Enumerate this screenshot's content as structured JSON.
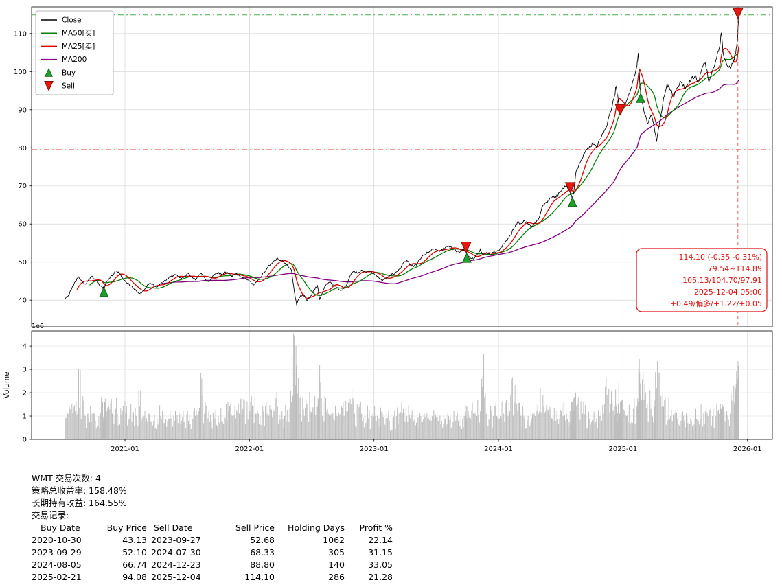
{
  "chart_data": {
    "type": "line",
    "title": "",
    "symbol": "WMT",
    "xlim": [
      2020.25,
      2026.2
    ],
    "price_ylim": [
      33,
      117
    ],
    "volume_ylim": [
      0,
      4.65
    ],
    "x_ticks": [
      {
        "x": 2021,
        "label": "2021-01"
      },
      {
        "x": 2022,
        "label": "2022-01"
      },
      {
        "x": 2023,
        "label": "2023-01"
      },
      {
        "x": 2024,
        "label": "2024-01"
      },
      {
        "x": 2025,
        "label": "2025-01"
      },
      {
        "x": 2026,
        "label": "2026-01"
      }
    ],
    "price_ticks": [
      40,
      50,
      60,
      70,
      80,
      90,
      100,
      110
    ],
    "volume_ticks": [
      0,
      1,
      2,
      3,
      4
    ],
    "volume_scale_label": "1e6",
    "volume_ylabel": "Volume",
    "series_labels": {
      "close": "Close",
      "ma50": "MA50[买]",
      "ma25": "MA25[卖]",
      "ma200": "MA200"
    },
    "ma_windows_days": {
      "ma25": 25,
      "ma50": 50,
      "ma200": 200
    },
    "thresholds": {
      "upper": 114.89,
      "lower": 79.54
    },
    "current_vline_x": 2025.923,
    "annotation_lines": [
      "114.10 (-0.35 -0.31%)",
      "79.54~114.89",
      "105.13/104.70/97.91",
      "2025-12-04 05:00",
      "+0.49/偏多/+1.22/+0.05"
    ],
    "markers": {
      "buys": [
        {
          "date": "2020-10-30",
          "x": 2020.831,
          "price": 43.13
        },
        {
          "date": "2023-09-29",
          "x": 2023.745,
          "price": 52.1
        },
        {
          "date": "2024-08-05",
          "x": 2024.594,
          "price": 66.74
        },
        {
          "date": "2025-02-21",
          "x": 2025.142,
          "price": 94.08
        }
      ],
      "sells": [
        {
          "date": "2023-09-27",
          "x": 2023.74,
          "price": 52.68
        },
        {
          "date": "2024-07-30",
          "x": 2024.577,
          "price": 68.33
        },
        {
          "date": "2024-12-23",
          "x": 2024.978,
          "price": 88.8
        },
        {
          "date": "2025-12-04",
          "x": 2025.923,
          "price": 114.1
        }
      ]
    },
    "points_format": [
      "year_decimal",
      "close",
      "volume_millions"
    ],
    "points": [
      [
        2020.52,
        40.4,
        0.9
      ],
      [
        2020.547,
        41.3,
        1.1
      ],
      [
        2020.574,
        43.2,
        1.5
      ],
      [
        2020.601,
        44.9,
        1.2
      ],
      [
        2020.628,
        46.1,
        3.0
      ],
      [
        2020.655,
        44.9,
        1.4
      ],
      [
        2020.682,
        44.2,
        1.0
      ],
      [
        2020.709,
        45.4,
        0.9
      ],
      [
        2020.736,
        46.3,
        1.1
      ],
      [
        2020.763,
        45.2,
        0.8
      ],
      [
        2020.79,
        44.2,
        1.0
      ],
      [
        2020.817,
        43.4,
        1.3
      ],
      [
        2020.833,
        43.1,
        1.2
      ],
      [
        2020.85,
        44.7,
        1.0
      ],
      [
        2020.871,
        45.6,
        1.4
      ],
      [
        2020.898,
        46.4,
        1.1
      ],
      [
        2020.925,
        47.7,
        1.3
      ],
      [
        2020.952,
        47.1,
        0.9
      ],
      [
        2020.979,
        45.9,
        1.2
      ],
      [
        2021.006,
        44.8,
        1.1
      ],
      [
        2021.034,
        44.1,
        0.9
      ],
      [
        2021.062,
        43.3,
        1.2
      ],
      [
        2021.09,
        42.5,
        1.0
      ],
      [
        2021.118,
        41.7,
        1.4
      ],
      [
        2021.146,
        42.3,
        1.1
      ],
      [
        2021.174,
        43.6,
        0.9
      ],
      [
        2021.202,
        44.5,
        1.0
      ],
      [
        2021.23,
        44.0,
        0.8
      ],
      [
        2021.258,
        43.4,
        0.9
      ],
      [
        2021.286,
        44.3,
        1.0
      ],
      [
        2021.314,
        44.9,
        0.7
      ],
      [
        2021.342,
        45.5,
        0.8
      ],
      [
        2021.37,
        46.2,
        0.9
      ],
      [
        2021.398,
        46.7,
        0.8
      ],
      [
        2021.426,
        46.2,
        0.7
      ],
      [
        2021.454,
        45.6,
        0.8
      ],
      [
        2021.482,
        46.4,
        0.9
      ],
      [
        2021.51,
        47.0,
        0.8
      ],
      [
        2021.538,
        46.1,
        0.9
      ],
      [
        2021.566,
        45.3,
        1.0
      ],
      [
        2021.594,
        46.6,
        1.2
      ],
      [
        2021.61,
        47.1,
        2.85
      ],
      [
        2021.638,
        46.0,
        1.1
      ],
      [
        2021.666,
        44.9,
        0.9
      ],
      [
        2021.694,
        45.7,
        0.8
      ],
      [
        2021.722,
        46.8,
        0.9
      ],
      [
        2021.75,
        47.3,
        1.0
      ],
      [
        2021.778,
        46.7,
        0.8
      ],
      [
        2021.806,
        47.4,
        0.9
      ],
      [
        2021.834,
        46.9,
        1.2
      ],
      [
        2021.862,
        46.2,
        1.0
      ],
      [
        2021.89,
        46.9,
        0.9
      ],
      [
        2021.918,
        46.4,
        1.1
      ],
      [
        2021.946,
        45.9,
        1.3
      ],
      [
        2021.974,
        45.6,
        1.0
      ],
      [
        2022.002,
        45.0,
        1.2
      ],
      [
        2022.03,
        43.9,
        1.4
      ],
      [
        2022.058,
        44.8,
        1.1
      ],
      [
        2022.086,
        45.9,
        1.0
      ],
      [
        2022.114,
        47.2,
        1.2
      ],
      [
        2022.142,
        48.4,
        1.1
      ],
      [
        2022.17,
        49.5,
        1.3
      ],
      [
        2022.198,
        50.3,
        1.2
      ],
      [
        2022.226,
        51.0,
        1.4
      ],
      [
        2022.254,
        50.4,
        1.1
      ],
      [
        2022.282,
        49.7,
        1.0
      ],
      [
        2022.31,
        48.9,
        1.3
      ],
      [
        2022.338,
        47.8,
        1.6
      ],
      [
        2022.36,
        42.4,
        4.45
      ],
      [
        2022.378,
        38.9,
        3.2
      ],
      [
        2022.406,
        40.9,
        1.8
      ],
      [
        2022.434,
        41.5,
        1.3
      ],
      [
        2022.462,
        39.9,
        1.5
      ],
      [
        2022.49,
        41.0,
        1.2
      ],
      [
        2022.518,
        42.7,
        1.1
      ],
      [
        2022.546,
        43.8,
        1.4
      ],
      [
        2022.564,
        40.1,
        3.2
      ],
      [
        2022.592,
        42.5,
        1.6
      ],
      [
        2022.62,
        44.3,
        1.2
      ],
      [
        2022.648,
        44.8,
        1.0
      ],
      [
        2022.676,
        44.0,
        0.9
      ],
      [
        2022.704,
        43.3,
        1.0
      ],
      [
        2022.732,
        42.5,
        1.1
      ],
      [
        2022.76,
        43.1,
        1.0
      ],
      [
        2022.788,
        44.7,
        1.2
      ],
      [
        2022.816,
        46.8,
        1.5
      ],
      [
        2022.844,
        47.5,
        1.1
      ],
      [
        2022.872,
        47.0,
        1.0
      ],
      [
        2022.9,
        47.9,
        1.1
      ],
      [
        2022.928,
        47.3,
        1.0
      ],
      [
        2022.956,
        47.6,
        0.9
      ],
      [
        2022.984,
        47.2,
        1.0
      ],
      [
        2023.012,
        46.6,
        1.0
      ],
      [
        2023.04,
        45.8,
        0.9
      ],
      [
        2023.068,
        45.1,
        1.1
      ],
      [
        2023.096,
        45.6,
        0.9
      ],
      [
        2023.124,
        46.3,
        0.8
      ],
      [
        2023.152,
        46.9,
        0.9
      ],
      [
        2023.18,
        47.4,
        1.0
      ],
      [
        2023.208,
        48.2,
        0.9
      ],
      [
        2023.236,
        49.8,
        1.3
      ],
      [
        2023.264,
        50.4,
        1.0
      ],
      [
        2023.292,
        49.2,
        0.9
      ],
      [
        2023.32,
        48.8,
        0.8
      ],
      [
        2023.348,
        49.6,
        0.9
      ],
      [
        2023.376,
        50.9,
        1.0
      ],
      [
        2023.404,
        51.8,
        1.1
      ],
      [
        2023.432,
        52.5,
        0.9
      ],
      [
        2023.46,
        53.1,
        0.8
      ],
      [
        2023.488,
        53.5,
        0.9
      ],
      [
        2023.516,
        52.9,
        0.8
      ],
      [
        2023.544,
        53.3,
        0.8
      ],
      [
        2023.572,
        53.8,
        0.9
      ],
      [
        2023.6,
        54.2,
        1.0
      ],
      [
        2023.628,
        53.6,
        0.9
      ],
      [
        2023.656,
        53.0,
        0.8
      ],
      [
        2023.684,
        52.5,
        0.9
      ],
      [
        2023.712,
        53.3,
        0.9
      ],
      [
        2023.738,
        52.7,
        1.0
      ],
      [
        2023.745,
        52.1,
        0.9
      ],
      [
        2023.77,
        51.2,
        1.0
      ],
      [
        2023.798,
        50.8,
        1.1
      ],
      [
        2023.826,
        51.9,
        1.0
      ],
      [
        2023.854,
        53.4,
        1.2
      ],
      [
        2023.874,
        52.0,
        2.7
      ],
      [
        2023.902,
        52.5,
        1.1
      ],
      [
        2023.93,
        52.0,
        0.9
      ],
      [
        2023.958,
        52.6,
        1.0
      ],
      [
        2023.986,
        52.9,
        1.0
      ],
      [
        2024.014,
        53.6,
        1.0
      ],
      [
        2024.042,
        54.8,
        1.1
      ],
      [
        2024.07,
        55.6,
        1.2
      ],
      [
        2024.098,
        57.1,
        1.9
      ],
      [
        2024.126,
        59.2,
        1.6
      ],
      [
        2024.154,
        60.6,
        1.2
      ],
      [
        2024.182,
        60.1,
        1.0
      ],
      [
        2024.21,
        60.8,
        0.9
      ],
      [
        2024.238,
        59.9,
        1.0
      ],
      [
        2024.266,
        59.4,
        0.9
      ],
      [
        2024.294,
        60.3,
        1.0
      ],
      [
        2024.322,
        61.3,
        1.1
      ],
      [
        2024.35,
        64.5,
        1.8
      ],
      [
        2024.378,
        65.6,
        1.2
      ],
      [
        2024.406,
        66.3,
        1.0
      ],
      [
        2024.434,
        67.3,
        0.9
      ],
      [
        2024.462,
        67.0,
        0.8
      ],
      [
        2024.49,
        68.2,
        0.9
      ],
      [
        2024.518,
        69.4,
        1.0
      ],
      [
        2024.546,
        70.1,
        1.1
      ],
      [
        2024.575,
        68.3,
        1.2
      ],
      [
        2024.592,
        66.7,
        1.6
      ],
      [
        2024.606,
        68.5,
        1.2
      ],
      [
        2024.62,
        73.2,
        2.0
      ],
      [
        2024.648,
        75.8,
        1.3
      ],
      [
        2024.676,
        77.3,
        1.1
      ],
      [
        2024.704,
        79.6,
        1.0
      ],
      [
        2024.732,
        80.4,
        0.9
      ],
      [
        2024.76,
        80.9,
        0.8
      ],
      [
        2024.788,
        80.1,
        0.9
      ],
      [
        2024.816,
        82.3,
        1.0
      ],
      [
        2024.844,
        84.0,
        1.1
      ],
      [
        2024.872,
        85.9,
        1.9
      ],
      [
        2024.9,
        89.5,
        1.5
      ],
      [
        2024.928,
        93.0,
        1.3
      ],
      [
        2024.945,
        96.1,
        1.4
      ],
      [
        2024.962,
        92.5,
        1.5
      ],
      [
        2024.979,
        88.8,
        1.6
      ],
      [
        2025.0,
        90.5,
        1.2
      ],
      [
        2025.028,
        92.3,
        1.0
      ],
      [
        2025.056,
        94.6,
        1.1
      ],
      [
        2025.084,
        97.8,
        1.3
      ],
      [
        2025.112,
        101.5,
        1.4
      ],
      [
        2025.123,
        104.9,
        1.6
      ],
      [
        2025.134,
        97.3,
        2.85
      ],
      [
        2025.142,
        94.1,
        2.3
      ],
      [
        2025.168,
        89.6,
        1.7
      ],
      [
        2025.196,
        86.3,
        1.5
      ],
      [
        2025.224,
        88.6,
        1.3
      ],
      [
        2025.252,
        85.2,
        1.4
      ],
      [
        2025.27,
        81.6,
        2.2
      ],
      [
        2025.298,
        87.4,
        1.8
      ],
      [
        2025.326,
        93.1,
        1.4
      ],
      [
        2025.354,
        96.8,
        1.3
      ],
      [
        2025.382,
        95.1,
        1.0
      ],
      [
        2025.41,
        93.5,
        0.9
      ],
      [
        2025.438,
        95.9,
        0.9
      ],
      [
        2025.466,
        97.3,
        0.8
      ],
      [
        2025.494,
        95.6,
        0.8
      ],
      [
        2025.522,
        96.8,
        0.7
      ],
      [
        2025.55,
        98.2,
        0.8
      ],
      [
        2025.578,
        98.8,
        0.9
      ],
      [
        2025.606,
        97.2,
        0.8
      ],
      [
        2025.634,
        100.9,
        1.0
      ],
      [
        2025.662,
        102.3,
        1.2
      ],
      [
        2025.69,
        97.3,
        1.5
      ],
      [
        2025.718,
        100.2,
        1.0
      ],
      [
        2025.746,
        103.0,
        1.0
      ],
      [
        2025.774,
        106.2,
        1.1
      ],
      [
        2025.79,
        110.2,
        1.3
      ],
      [
        2025.806,
        104.6,
        1.4
      ],
      [
        2025.834,
        101.8,
        1.2
      ],
      [
        2025.862,
        100.9,
        1.1
      ],
      [
        2025.89,
        103.1,
        2.3
      ],
      [
        2025.906,
        105.0,
        2.2
      ],
      [
        2025.918,
        107.8,
        2.0
      ],
      [
        2025.93,
        114.1,
        2.4
      ]
    ]
  },
  "legend": {
    "items": [
      {
        "label": "Close",
        "type": "line",
        "color": "#000000"
      },
      {
        "label": "MA50[买]",
        "type": "line",
        "color": "#008000"
      },
      {
        "label": "MA25[卖]",
        "type": "line",
        "color": "#dd0000"
      },
      {
        "label": "MA200",
        "type": "line",
        "color": "#800080"
      },
      {
        "label": "Buy",
        "type": "marker-up",
        "color": "#1fa02c"
      },
      {
        "label": "Sell",
        "type": "marker-down",
        "color": "#e8170e"
      }
    ]
  },
  "colors": {
    "grid": "#d9d9d9",
    "grid_faint": "#e8e8e8",
    "spine": "#000000",
    "close": "#000000",
    "ma25": "#dd0000",
    "ma50": "#008000",
    "ma200": "#800080",
    "volume_bar": "#bdbdbd",
    "buy": "#1fa02c",
    "buy_edge": "#0e5e16",
    "sell": "#e8170e",
    "sell_edge": "#8f0b06",
    "upper_line": "#2ca02c",
    "lower_line": "#e64545",
    "vline": "#e04040",
    "annotation": "#e01010",
    "tick_text": "#000000"
  },
  "footer": {
    "lines": [
      "WMT 交易次数: 4",
      "策略总收益率: 158.48%",
      "长期持有收益: 164.55%",
      "交易记录:"
    ],
    "trades": {
      "headers": [
        "Buy Date",
        "Buy Price",
        "Sell Date",
        "Sell Price",
        "Holding Days",
        "Profit %"
      ],
      "rows": [
        [
          "2020-10-30",
          "43.13",
          "2023-09-27",
          "52.68",
          "1062",
          "22.14"
        ],
        [
          "2023-09-29",
          "52.10",
          "2024-07-30",
          "68.33",
          "305",
          "31.15"
        ],
        [
          "2024-08-05",
          "66.74",
          "2024-12-23",
          "88.80",
          "140",
          "33.05"
        ],
        [
          "2025-02-21",
          "94.08",
          "2025-12-04",
          "114.10",
          "286",
          "21.28"
        ]
      ]
    }
  }
}
